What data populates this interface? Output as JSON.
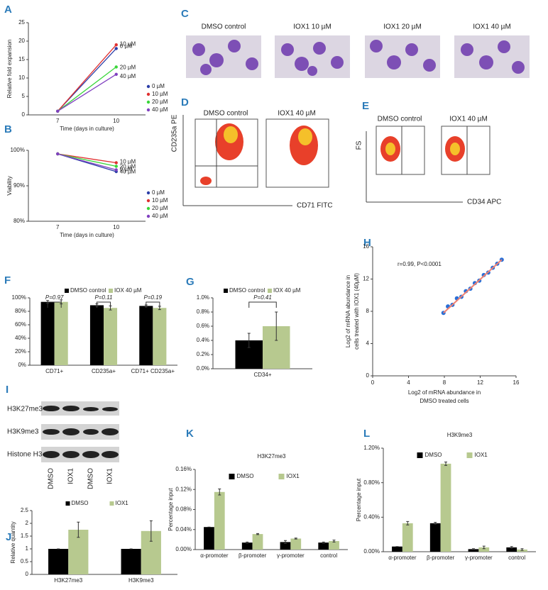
{
  "chart_data": [
    {
      "type": "line",
      "panel": "A",
      "ylabel": "Relative fold expansion",
      "xlabel": "Time (days in culture)",
      "categories": [
        "7",
        "10"
      ],
      "ylim": [
        0,
        25
      ],
      "yticks": [
        0,
        5,
        10,
        15,
        20,
        25
      ],
      "legend": "right",
      "end_labels": true,
      "series": [
        {
          "name": "0 µM",
          "color": "#2c3ea8",
          "values": [
            1,
            18
          ]
        },
        {
          "name": "10 µM",
          "color": "#e03030",
          "values": [
            1,
            19
          ]
        },
        {
          "name": "20 µM",
          "color": "#3ad63a",
          "values": [
            1,
            13
          ]
        },
        {
          "name": "40 µM",
          "color": "#8040c0",
          "values": [
            1,
            11
          ]
        }
      ]
    },
    {
      "type": "line",
      "panel": "B",
      "ylabel": "Viability",
      "xlabel": "Time (days in culture)",
      "categories": [
        "7",
        "10"
      ],
      "ylim": [
        80,
        100
      ],
      "yticks": [
        {
          "value": 80,
          "label": "80%"
        },
        {
          "value": 90,
          "label": "90%"
        },
        {
          "value": 100,
          "label": "100%"
        }
      ],
      "legend": "right",
      "end_labels": true,
      "series": [
        {
          "name": "0 µM",
          "color": "#2c3ea8",
          "values": [
            99,
            94
          ]
        },
        {
          "name": "10 µM",
          "color": "#e03030",
          "values": [
            99,
            96.5
          ]
        },
        {
          "name": "20 µM",
          "color": "#3ad63a",
          "values": [
            99,
            95.5
          ]
        },
        {
          "name": "40 µM",
          "color": "#8040c0",
          "values": [
            99,
            94.5
          ]
        }
      ]
    },
    {
      "type": "bar",
      "panel": "F",
      "categories": [
        "CD71+",
        "CD235a+",
        "CD71+ CD235a+"
      ],
      "ylim": [
        0,
        100
      ],
      "yticks": [
        {
          "value": 0,
          "label": "0%"
        },
        {
          "value": 20,
          "label": "20%"
        },
        {
          "value": 40,
          "label": "40%"
        },
        {
          "value": 60,
          "label": "60%"
        },
        {
          "value": 80,
          "label": "80%"
        },
        {
          "value": 100,
          "label": "100%"
        }
      ],
      "legend": "top",
      "annotations": [
        "P=0.97",
        "P=0.11",
        "P=0.19"
      ],
      "series": [
        {
          "name": "DMSO control",
          "color": "#000000",
          "values": [
            94,
            89,
            88
          ],
          "errors": [
            2,
            2,
            1.5
          ]
        },
        {
          "name": "IOX 40 µM",
          "color": "#b7c98f",
          "values": [
            94,
            85,
            85
          ],
          "errors": [
            3,
            3,
            2.5
          ]
        }
      ]
    },
    {
      "type": "bar",
      "panel": "G",
      "categories": [
        "CD34+"
      ],
      "ylim": [
        0,
        1.0
      ],
      "yticks": [
        {
          "value": 0,
          "label": "0.0%"
        },
        {
          "value": 0.2,
          "label": "0.2%"
        },
        {
          "value": 0.4,
          "label": "0.4%"
        },
        {
          "value": 0.6,
          "label": "0.6%"
        },
        {
          "value": 0.8,
          "label": "0.8%"
        },
        {
          "value": 1.0,
          "label": "1.0%"
        }
      ],
      "legend": "top",
      "annotations": [
        "P=0.41"
      ],
      "series": [
        {
          "name": "DMSO control",
          "color": "#000000",
          "values": [
            0.4
          ],
          "errors": [
            0.1
          ]
        },
        {
          "name": "IOX 40 µM",
          "color": "#b7c98f",
          "values": [
            0.6
          ],
          "errors": [
            0.2
          ]
        }
      ]
    },
    {
      "type": "scatter",
      "panel": "H",
      "xlabel": [
        "Log2 of mRNA abundance in",
        "DMSO treated cells"
      ],
      "ylabel": [
        "Log2 of mRNA abundance in",
        "cells treated with IOX1 (40µM)"
      ],
      "xlim": [
        0,
        16
      ],
      "xticks": [
        0,
        4,
        8,
        12,
        16
      ],
      "ylim": [
        0,
        16
      ],
      "yticks": [
        0,
        4,
        8,
        12,
        16
      ],
      "annotations": [
        "r=0.99, P<0.0001"
      ],
      "color": "#2a6fd6",
      "x": [
        7.9,
        8.4,
        8.9,
        9.4,
        9.9,
        10.4,
        10.9,
        11.4,
        11.9,
        12.4,
        12.9,
        13.4,
        13.9,
        14.4
      ],
      "y": [
        7.8,
        8.6,
        8.8,
        9.6,
        9.8,
        10.5,
        10.8,
        11.5,
        11.8,
        12.5,
        12.8,
        13.4,
        13.9,
        14.4
      ]
    },
    {
      "type": "bar",
      "panel": "J",
      "ylabel": "Relative quantity",
      "categories": [
        "H3K27me3",
        "H3K9me3"
      ],
      "ylim": [
        0,
        2.5
      ],
      "yticks": [
        0,
        0.5,
        1,
        1.5,
        2,
        2.5
      ],
      "legend": "top",
      "series": [
        {
          "name": "DMSO",
          "color": "#000000",
          "values": [
            1,
            1
          ],
          "errors": [
            0,
            0
          ]
        },
        {
          "name": "IOX1",
          "color": "#b7c98f",
          "values": [
            1.75,
            1.7
          ],
          "errors": [
            0.3,
            0.4
          ]
        }
      ]
    },
    {
      "type": "bar",
      "panel": "K",
      "title": "H3K27me3",
      "ylabel": "Percentage input",
      "categories": [
        "α-promoter",
        "β-promoter",
        "γ-promoter",
        "control"
      ],
      "ylim": [
        0,
        0.16
      ],
      "yticks": [
        {
          "value": 0,
          "label": "0.00%"
        },
        {
          "value": 0.04,
          "label": "0.04%"
        },
        {
          "value": 0.08,
          "label": "0.08%"
        },
        {
          "value": 0.12,
          "label": "0.12%"
        },
        {
          "value": 0.16,
          "label": "0.16%"
        }
      ],
      "legend": "inside",
      "series": [
        {
          "name": "DMSO",
          "color": "#000000",
          "values": [
            0.045,
            0.014,
            0.015,
            0.014
          ],
          "errors": [
            0,
            0.001,
            0.003,
            0.001
          ]
        },
        {
          "name": "IOX1",
          "color": "#b7c98f",
          "values": [
            0.115,
            0.031,
            0.022,
            0.017
          ],
          "errors": [
            0.006,
            0.001,
            0.001,
            0.002
          ]
        }
      ]
    },
    {
      "type": "bar",
      "panel": "L",
      "title": "H3K9me3",
      "ylabel": "Percentage input",
      "categories": [
        "α-promoter",
        "β-promoter",
        "γ-promoter",
        "control"
      ],
      "ylim": [
        0,
        1.2
      ],
      "yticks": [
        {
          "value": 0,
          "label": "0.00%"
        },
        {
          "value": 0.4,
          "label": "0.40%"
        },
        {
          "value": 0.8,
          "label": "0.80%"
        },
        {
          "value": 1.2,
          "label": "1.20%"
        }
      ],
      "legend": "inside",
      "series": [
        {
          "name": "DMSO",
          "color": "#000000",
          "values": [
            0.06,
            0.33,
            0.03,
            0.05
          ],
          "errors": [
            0,
            0.01,
            0.005,
            0.01
          ]
        },
        {
          "name": "IOX1",
          "color": "#b7c98f",
          "values": [
            0.33,
            1.02,
            0.05,
            0.025
          ],
          "errors": [
            0.02,
            0.02,
            0.015,
            0.01
          ]
        }
      ]
    }
  ],
  "micrographs": {
    "panel": "C",
    "labels": [
      "DMSO control",
      "IOX1 10 µM",
      "IOX1 20 µM",
      "IOX1 40 µM"
    ]
  },
  "flow_cd71": {
    "panel": "D",
    "labels": [
      "DMSO control",
      "IOX1 40 µM"
    ],
    "y_axis": "CD235a PE",
    "x_axis": "CD71 FITC"
  },
  "flow_cd34": {
    "panel": "E",
    "labels": [
      "DMSO control",
      "IOX1 40 µM"
    ],
    "y_axis": "FS",
    "x_axis": "CD34 APC"
  },
  "blot": {
    "panel": "I",
    "rows": [
      "H3K27me3",
      "H3K9me3",
      "Histone H3"
    ],
    "lanes": [
      "DMSO",
      "IOX1",
      "DMSO",
      "IOX1"
    ]
  }
}
